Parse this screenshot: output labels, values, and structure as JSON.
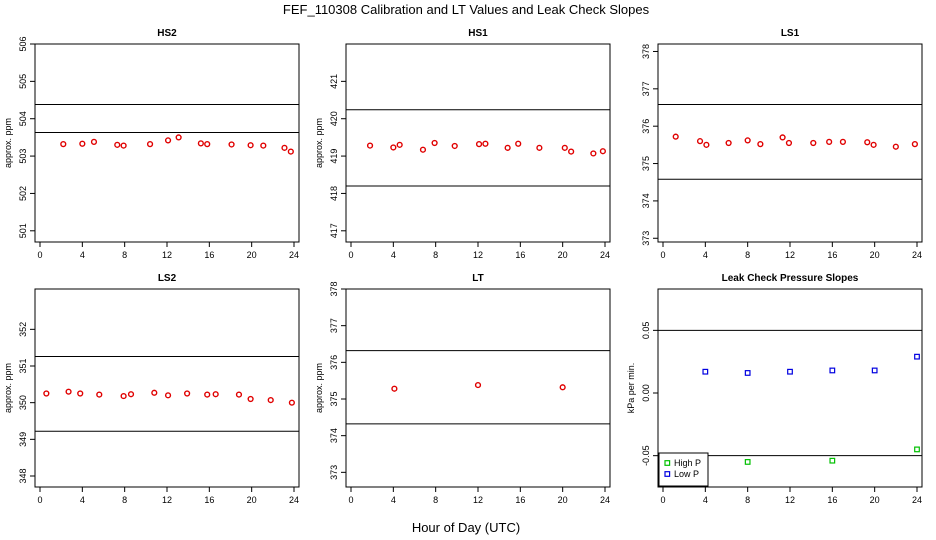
{
  "figure": {
    "title": "FEF_110308  Calibration and LT Values and Leak Check Slopes",
    "xlabel": "Hour of Day (UTC)"
  },
  "colors": {
    "red": "#e00000",
    "blue": "#0000e0",
    "green": "#00c000",
    "ref_line": "#000000"
  },
  "chart_data": [
    {
      "type": "scatter",
      "title": "HS2",
      "ylabel": "approx. ppm",
      "xlim": [
        0,
        24
      ],
      "xticks": [
        0,
        4,
        8,
        12,
        16,
        20,
        24
      ],
      "ylim": [
        500.7,
        506.0
      ],
      "yticks": [
        501,
        502,
        503,
        504,
        505,
        506
      ],
      "ref_lines": [
        503.63,
        504.38
      ],
      "grid": false,
      "series": [
        {
          "marker": "circle",
          "color": "#e00000",
          "points": [
            [
              2.2,
              503.32
            ],
            [
              4.0,
              503.33
            ],
            [
              5.1,
              503.38
            ],
            [
              7.3,
              503.3
            ],
            [
              7.9,
              503.28
            ],
            [
              10.4,
              503.32
            ],
            [
              12.1,
              503.42
            ],
            [
              13.1,
              503.5
            ],
            [
              15.2,
              503.34
            ],
            [
              15.8,
              503.32
            ],
            [
              18.1,
              503.31
            ],
            [
              19.9,
              503.29
            ],
            [
              21.1,
              503.28
            ],
            [
              23.1,
              503.22
            ],
            [
              23.7,
              503.12
            ]
          ]
        }
      ]
    },
    {
      "type": "scatter",
      "title": "HS1",
      "ylabel": "approx. ppm",
      "xlim": [
        0,
        24
      ],
      "xticks": [
        0,
        4,
        8,
        12,
        16,
        20,
        24
      ],
      "ylim": [
        416.7,
        422.0
      ],
      "yticks": [
        417,
        418,
        419,
        420,
        421
      ],
      "ref_lines": [
        418.2,
        420.24
      ],
      "grid": false,
      "series": [
        {
          "marker": "circle",
          "color": "#e00000",
          "points": [
            [
              1.8,
              419.28
            ],
            [
              4.0,
              419.23
            ],
            [
              4.6,
              419.3
            ],
            [
              6.8,
              419.17
            ],
            [
              7.9,
              419.35
            ],
            [
              9.8,
              419.27
            ],
            [
              12.1,
              419.32
            ],
            [
              12.7,
              419.33
            ],
            [
              14.8,
              419.22
            ],
            [
              15.8,
              419.33
            ],
            [
              17.8,
              419.22
            ],
            [
              20.2,
              419.22
            ],
            [
              20.8,
              419.12
            ],
            [
              22.9,
              419.07
            ],
            [
              23.8,
              419.13
            ]
          ]
        }
      ]
    },
    {
      "type": "scatter",
      "title": "LS1",
      "ylabel": "",
      "xlim": [
        0,
        24
      ],
      "xticks": [
        0,
        4,
        8,
        12,
        16,
        20,
        24
      ],
      "ylim": [
        372.9,
        378.2
      ],
      "yticks": [
        373,
        374,
        375,
        376,
        377,
        378
      ],
      "ref_lines": [
        374.58,
        376.58
      ],
      "grid": false,
      "series": [
        {
          "marker": "circle",
          "color": "#e00000",
          "points": [
            [
              1.2,
              375.72
            ],
            [
              3.5,
              375.6
            ],
            [
              4.1,
              375.5
            ],
            [
              6.2,
              375.55
            ],
            [
              8.0,
              375.62
            ],
            [
              9.2,
              375.52
            ],
            [
              11.3,
              375.7
            ],
            [
              11.9,
              375.55
            ],
            [
              14.2,
              375.55
            ],
            [
              15.7,
              375.58
            ],
            [
              17.0,
              375.58
            ],
            [
              19.3,
              375.57
            ],
            [
              19.9,
              375.5
            ],
            [
              22.0,
              375.45
            ],
            [
              23.8,
              375.52
            ]
          ]
        }
      ]
    },
    {
      "type": "scatter",
      "title": "LS2",
      "ylabel": "approx. ppm",
      "xlim": [
        0,
        24
      ],
      "xticks": [
        0,
        4,
        8,
        12,
        16,
        20,
        24
      ],
      "ylim": [
        347.7,
        353.1
      ],
      "yticks": [
        348,
        349,
        350,
        351,
        352
      ],
      "ref_lines": [
        349.22,
        351.26
      ],
      "grid": false,
      "series": [
        {
          "marker": "circle",
          "color": "#e00000",
          "points": [
            [
              0.6,
              350.25
            ],
            [
              2.7,
              350.3
            ],
            [
              3.8,
              350.25
            ],
            [
              5.6,
              350.22
            ],
            [
              7.9,
              350.18
            ],
            [
              8.6,
              350.23
            ],
            [
              10.8,
              350.27
            ],
            [
              12.1,
              350.2
            ],
            [
              13.9,
              350.25
            ],
            [
              15.8,
              350.22
            ],
            [
              16.6,
              350.23
            ],
            [
              18.8,
              350.22
            ],
            [
              19.9,
              350.1
            ],
            [
              21.8,
              350.07
            ],
            [
              23.8,
              350.0
            ]
          ]
        }
      ]
    },
    {
      "type": "scatter",
      "title": "LT",
      "ylabel": "approx. ppm",
      "xlim": [
        0,
        24
      ],
      "xticks": [
        0,
        4,
        8,
        12,
        16,
        20,
        24
      ],
      "ylim": [
        372.6,
        378.0
      ],
      "yticks": [
        373,
        374,
        375,
        376,
        377,
        378
      ],
      "ref_lines": [
        374.32,
        376.32
      ],
      "grid": false,
      "series": [
        {
          "marker": "circle",
          "color": "#e00000",
          "points": [
            [
              4.1,
              375.28
            ],
            [
              12.0,
              375.38
            ],
            [
              20.0,
              375.32
            ]
          ]
        }
      ]
    },
    {
      "type": "scatter",
      "title": "Leak Check Pressure Slopes",
      "ylabel": "kPa per min.",
      "xlim": [
        0,
        24
      ],
      "xticks": [
        0,
        4,
        8,
        12,
        16,
        20,
        24
      ],
      "ylim": [
        -0.075,
        0.083
      ],
      "yticks": [
        -0.05,
        0.0,
        0.05
      ],
      "ytick_labels": [
        "-0.05",
        "0.00",
        "0.05"
      ],
      "ref_lines": [
        -0.05,
        0.05
      ],
      "grid": false,
      "legend": {
        "position": "bottom-left",
        "entries": [
          "High P",
          "Low P"
        ]
      },
      "series": [
        {
          "name": "High P",
          "marker": "square",
          "color": "#00c000",
          "points": [
            [
              8.0,
              -0.055
            ],
            [
              16.0,
              -0.054
            ],
            [
              24.0,
              -0.045
            ]
          ]
        },
        {
          "name": "Low P",
          "marker": "square",
          "color": "#0000e0",
          "points": [
            [
              4.0,
              0.017
            ],
            [
              8.0,
              0.016
            ],
            [
              12.0,
              0.017
            ],
            [
              16.0,
              0.018
            ],
            [
              20.0,
              0.018
            ],
            [
              24.0,
              0.029
            ]
          ]
        }
      ]
    }
  ]
}
